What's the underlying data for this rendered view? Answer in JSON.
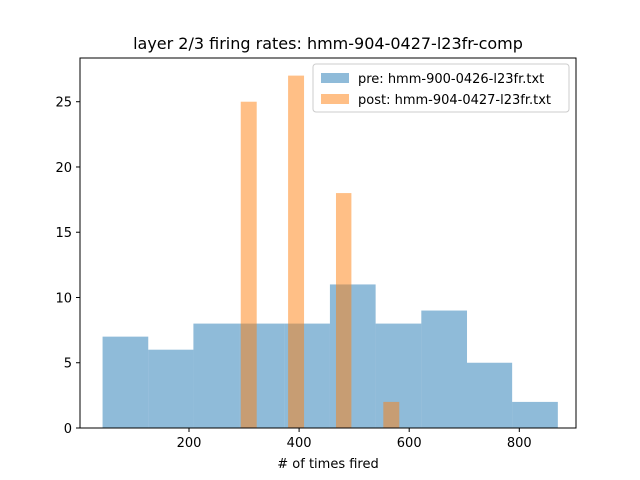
{
  "chart_data": {
    "type": "histogram",
    "title": "layer 2/3 firing rates: hmm-904-0427-l23fr-comp",
    "xlabel": "# of times fired",
    "ylabel": "",
    "xlim": [
      2,
      903
    ],
    "ylim": [
      0,
      28.35
    ],
    "xticks": [
      200,
      400,
      600,
      800
    ],
    "yticks": [
      0,
      5,
      10,
      15,
      20,
      25
    ],
    "legend_position": "upper-right",
    "series": [
      {
        "name": "pre: hmm-900-0426-l23fr.txt",
        "color": "#1f77b4",
        "alpha": 0.5,
        "bins": [
          {
            "x0": 43,
            "x1": 126,
            "count": 7
          },
          {
            "x0": 126,
            "x1": 208,
            "count": 6
          },
          {
            "x0": 208,
            "x1": 291,
            "count": 8
          },
          {
            "x0": 291,
            "x1": 374,
            "count": 8
          },
          {
            "x0": 374,
            "x1": 456,
            "count": 8
          },
          {
            "x0": 456,
            "x1": 539,
            "count": 11
          },
          {
            "x0": 539,
            "x1": 622,
            "count": 8
          },
          {
            "x0": 622,
            "x1": 705,
            "count": 9
          },
          {
            "x0": 705,
            "x1": 787,
            "count": 5
          },
          {
            "x0": 787,
            "x1": 870,
            "count": 2
          }
        ]
      },
      {
        "name": "post: hmm-904-0427-l23fr.txt",
        "color": "#ff7f0e",
        "alpha": 0.5,
        "bins": [
          {
            "x0": 294,
            "x1": 323,
            "count": 25
          },
          {
            "x0": 323,
            "x1": 351,
            "count": 0
          },
          {
            "x0": 351,
            "x1": 380,
            "count": 0
          },
          {
            "x0": 380,
            "x1": 409,
            "count": 27
          },
          {
            "x0": 409,
            "x1": 438,
            "count": 0
          },
          {
            "x0": 438,
            "x1": 467,
            "count": 0
          },
          {
            "x0": 467,
            "x1": 495,
            "count": 18
          },
          {
            "x0": 495,
            "x1": 524,
            "count": 0
          },
          {
            "x0": 524,
            "x1": 553,
            "count": 0
          },
          {
            "x0": 553,
            "x1": 582,
            "count": 2
          }
        ]
      }
    ]
  }
}
